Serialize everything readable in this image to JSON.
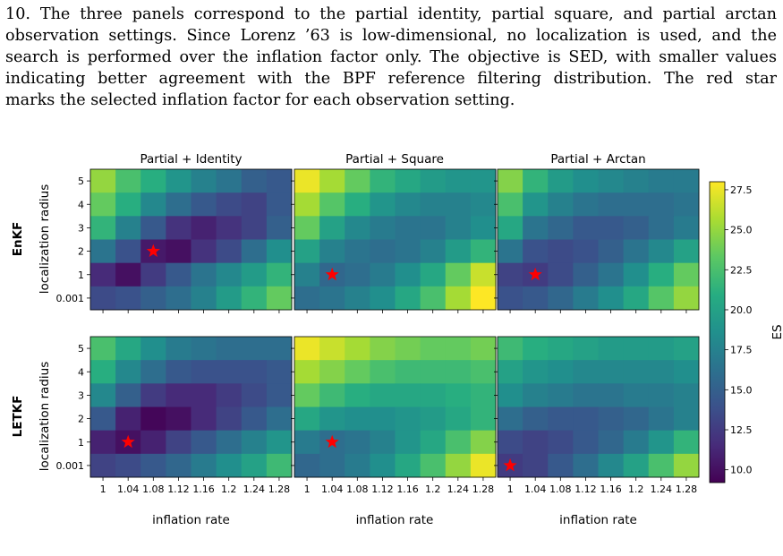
{
  "caption_lines": [
    "10. The three panels correspond to the partial identity, partial square, and partial arctan",
    "observation settings. Since Lorenz ’63 is low-dimensional, no localization is used, and the",
    "search is performed over the inflation factor only. The objective is SED, with smaller values",
    "indicating better agreement with the BPF reference filtering distribution.  The red star",
    "marks the selected inflation factor for each observation setting."
  ],
  "colors": {
    "star": "#ff0000",
    "colormap": "viridis"
  },
  "chart_data": {
    "type": "heatmap",
    "column_titles": [
      "Partial + Identity",
      "Partial + Square",
      "Partial + Arctan"
    ],
    "row_titles": [
      "EnKF",
      "LETKF"
    ],
    "xlabel": "inflation rate",
    "ylabel": "localization radius",
    "x_ticks": [
      "1",
      "1.04",
      "1.08",
      "1.12",
      "1.16",
      "1.2",
      "1.24",
      "1.28"
    ],
    "y_ticks": [
      "5",
      "4",
      "3",
      "2",
      "1",
      "0.001"
    ],
    "colorbar": {
      "label": "ES",
      "vmin": 9.2,
      "vmax": 28.0,
      "ticks": [
        "27.5",
        "25.0",
        "22.5",
        "20.0",
        "17.5",
        "15.0",
        "12.5",
        "10.0"
      ]
    },
    "panels": [
      {
        "row": "EnKF",
        "col": "Partial + Identity",
        "star": {
          "x": "1.08",
          "y": "2"
        },
        "values": [
          [
            25.0,
            22.5,
            21.0,
            19.0,
            17.5,
            16.5,
            15.0,
            14.5
          ],
          [
            23.5,
            21.0,
            18.0,
            16.0,
            14.5,
            13.5,
            13.0,
            14.5
          ],
          [
            21.5,
            17.5,
            14.5,
            12.0,
            11.0,
            12.0,
            13.0,
            15.0
          ],
          [
            16.5,
            14.0,
            10.5,
            10.0,
            12.0,
            13.5,
            16.0,
            18.5
          ],
          [
            11.5,
            10.0,
            12.5,
            14.5,
            16.5,
            18.0,
            19.5,
            21.5
          ],
          [
            13.5,
            14.0,
            15.0,
            16.0,
            17.5,
            19.5,
            21.5,
            23.5
          ]
        ]
      },
      {
        "row": "EnKF",
        "col": "Partial + Square",
        "star": {
          "x": "1.04",
          "y": "1"
        },
        "values": [
          [
            27.5,
            25.5,
            23.5,
            21.5,
            20.5,
            19.5,
            19.0,
            19.0
          ],
          [
            25.5,
            23.0,
            21.0,
            19.0,
            18.0,
            17.5,
            17.5,
            18.0
          ],
          [
            23.5,
            20.0,
            18.0,
            17.0,
            16.5,
            16.5,
            17.5,
            18.5
          ],
          [
            20.0,
            17.5,
            16.5,
            16.0,
            16.5,
            17.5,
            19.5,
            21.5
          ],
          [
            17.5,
            15.5,
            16.0,
            17.0,
            18.5,
            20.5,
            23.5,
            26.5
          ],
          [
            16.0,
            16.5,
            17.5,
            18.5,
            20.5,
            22.5,
            25.5,
            28.0
          ]
        ]
      },
      {
        "row": "EnKF",
        "col": "Partial + Arctan",
        "star": {
          "x": "1.04",
          "y": "1"
        },
        "values": [
          [
            24.5,
            21.5,
            19.5,
            18.5,
            18.0,
            17.5,
            17.0,
            17.0
          ],
          [
            22.5,
            19.0,
            17.5,
            16.5,
            16.0,
            16.0,
            16.0,
            16.5
          ],
          [
            20.5,
            16.5,
            15.5,
            14.5,
            14.5,
            15.0,
            16.0,
            17.0
          ],
          [
            16.5,
            14.0,
            13.5,
            14.0,
            15.0,
            16.5,
            18.0,
            20.0
          ],
          [
            13.0,
            12.5,
            13.5,
            15.0,
            16.5,
            18.5,
            21.0,
            23.5
          ],
          [
            14.0,
            14.5,
            15.5,
            17.0,
            18.5,
            20.5,
            23.0,
            25.0
          ]
        ]
      },
      {
        "row": "LETKF",
        "col": "Partial + Identity",
        "star": {
          "x": "1.04",
          "y": "1"
        },
        "values": [
          [
            22.5,
            20.5,
            18.5,
            17.0,
            16.5,
            16.0,
            16.0,
            16.0
          ],
          [
            21.0,
            18.0,
            16.0,
            14.5,
            14.0,
            14.0,
            14.0,
            14.5
          ],
          [
            18.0,
            15.0,
            12.5,
            11.5,
            11.5,
            12.5,
            13.5,
            14.5
          ],
          [
            14.5,
            11.0,
            9.5,
            10.0,
            11.5,
            13.0,
            14.5,
            16.0
          ],
          [
            11.0,
            10.0,
            11.0,
            13.0,
            14.5,
            16.0,
            17.5,
            19.0
          ],
          [
            13.0,
            13.5,
            14.5,
            15.5,
            17.0,
            18.5,
            20.0,
            22.0
          ]
        ]
      },
      {
        "row": "LETKF",
        "col": "Partial + Square",
        "star": {
          "x": "1.04",
          "y": "1"
        },
        "values": [
          [
            27.5,
            26.5,
            25.5,
            24.5,
            24.0,
            23.5,
            23.5,
            24.0
          ],
          [
            25.5,
            24.5,
            23.5,
            22.5,
            22.0,
            22.0,
            22.0,
            22.5
          ],
          [
            23.5,
            22.0,
            21.0,
            20.5,
            20.5,
            20.5,
            21.0,
            21.5
          ],
          [
            20.5,
            19.0,
            18.5,
            18.5,
            19.0,
            19.5,
            20.5,
            21.5
          ],
          [
            17.0,
            16.0,
            16.5,
            17.5,
            19.0,
            20.5,
            22.5,
            24.5
          ],
          [
            15.5,
            16.0,
            17.0,
            18.5,
            20.5,
            22.5,
            25.0,
            27.5
          ]
        ]
      },
      {
        "row": "LETKF",
        "col": "Partial + Arctan",
        "star": {
          "x": "1",
          "y": "0.001"
        },
        "values": [
          [
            22.0,
            21.0,
            20.5,
            20.0,
            19.5,
            19.5,
            19.5,
            20.0
          ],
          [
            20.0,
            19.0,
            18.5,
            18.0,
            18.0,
            18.0,
            18.0,
            18.5
          ],
          [
            18.5,
            17.5,
            17.0,
            16.5,
            16.5,
            17.0,
            17.0,
            17.5
          ],
          [
            16.0,
            15.0,
            14.5,
            14.5,
            15.0,
            15.5,
            16.5,
            17.5
          ],
          [
            13.5,
            13.0,
            13.5,
            14.5,
            15.5,
            17.0,
            19.0,
            21.5
          ],
          [
            12.5,
            13.0,
            14.5,
            16.0,
            18.0,
            20.0,
            22.5,
            25.0
          ]
        ]
      }
    ]
  }
}
